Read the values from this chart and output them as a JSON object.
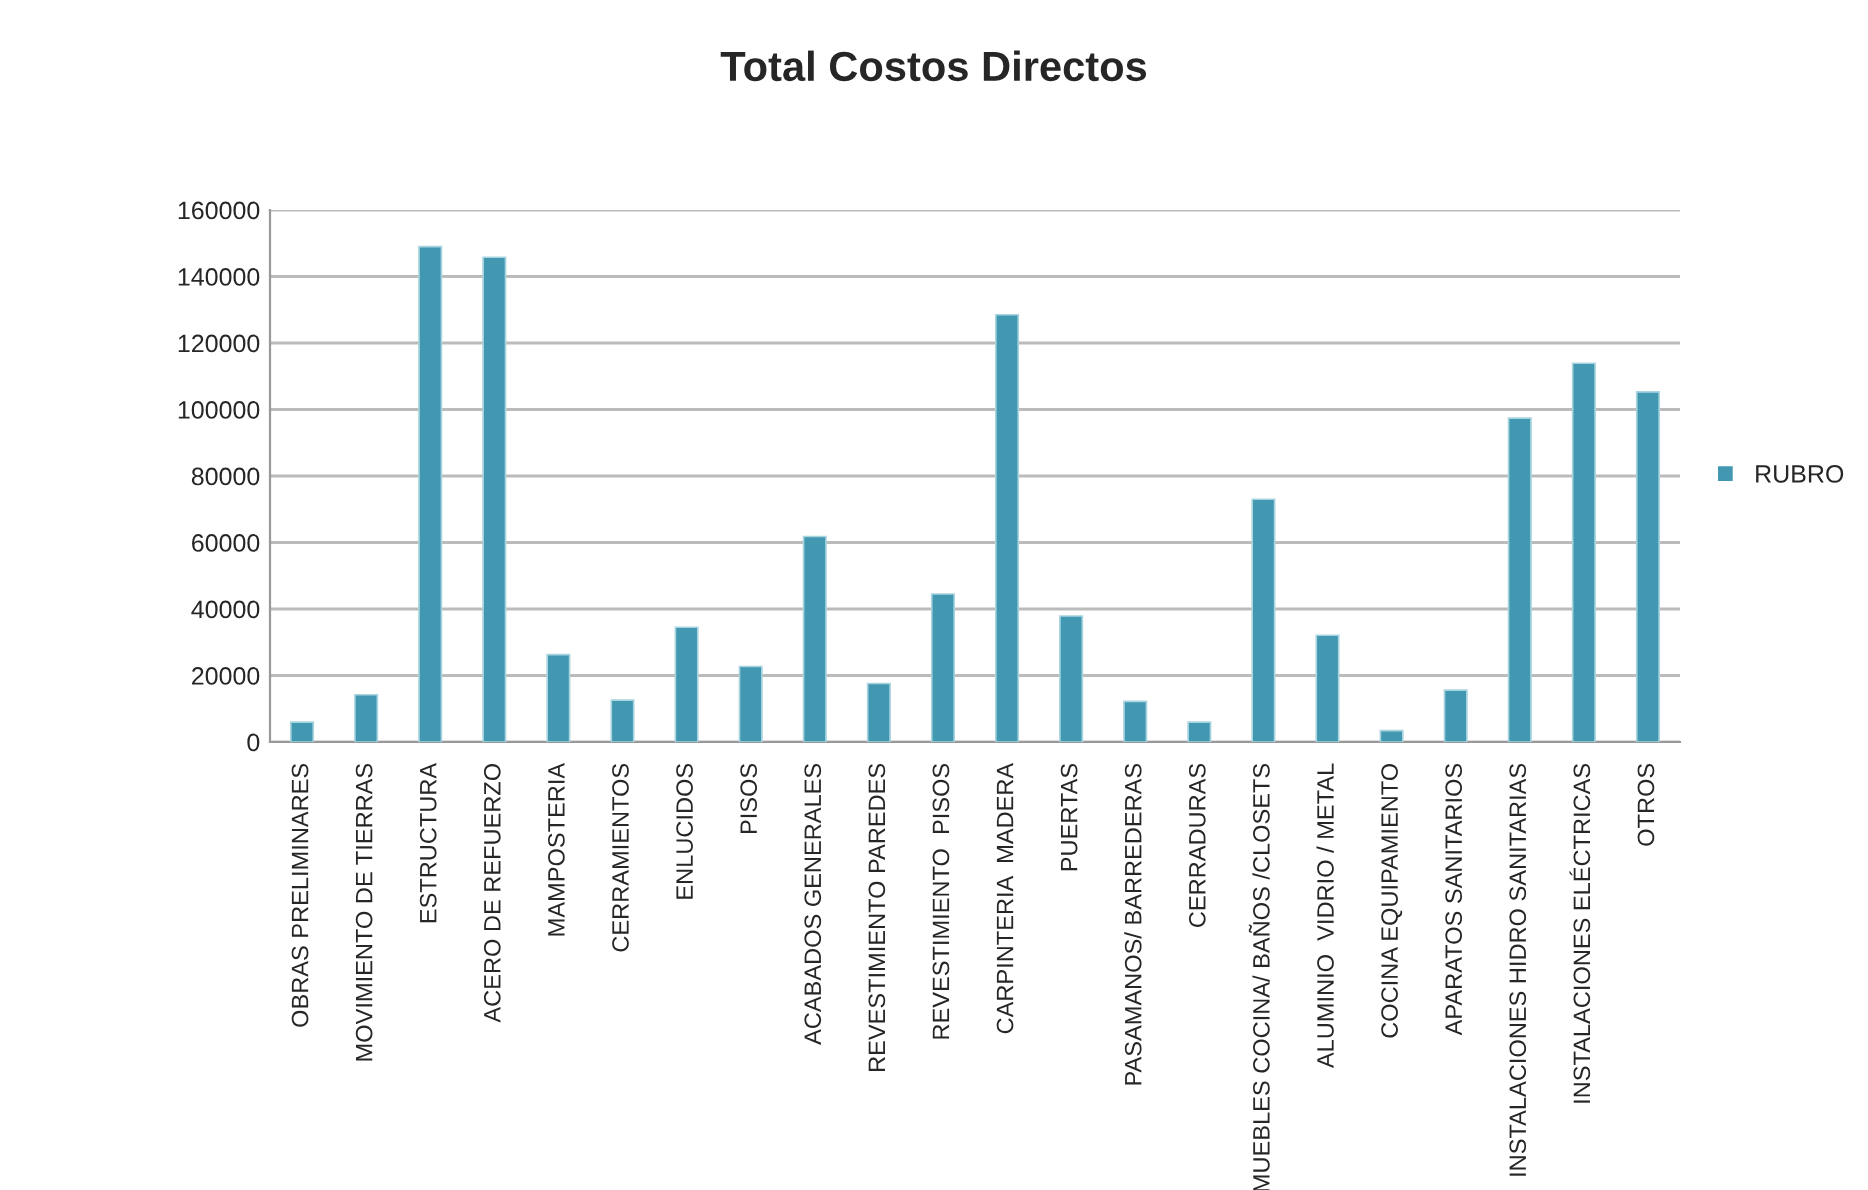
{
  "chart_data": {
    "type": "bar",
    "title": "Total Costos Directos",
    "categories": [
      "OBRAS PRELIMINARES",
      "MOVIMIENTO DE TIERRAS",
      "ESTRUCTURA",
      "ACERO DE REFUERZO",
      "MAMPOSTERIA",
      "CERRAMIENTOS",
      "ENLUCIDOS",
      "PISOS",
      "ACABADOS GENERALES",
      "REVESTIMIENTO PAREDES",
      "REVESTIMIENTO  PISOS",
      "CARPINTERIA  MADERA",
      "PUERTAS",
      "PASAMANOS/ BARREDERAS",
      "CERRADURAS",
      "MUEBLES COCINA/ BAÑOS /CLOSETS",
      "ALUMINIO  VIDRIO / METAL",
      "COCINA EQUIPAMIENTO",
      "APARATOS SANITARIOS",
      "INSTALACIONES HIDRO SANITARIAS",
      "INSTALACIONES ELÉCTRICAS",
      "OTROS"
    ],
    "series": [
      {
        "name": "RUBRO",
        "color": "#4298b0",
        "values": [
          6000,
          14200,
          149000,
          145800,
          26300,
          12600,
          34500,
          22700,
          61800,
          17600,
          44500,
          128500,
          37900,
          12200,
          6000,
          73000,
          32100,
          3400,
          15600,
          97400,
          113900,
          105300
        ]
      }
    ],
    "ylim": [
      0,
      160000
    ],
    "yticks": [
      0,
      20000,
      40000,
      60000,
      80000,
      100000,
      120000,
      140000,
      160000
    ],
    "grid": "y",
    "legend": "right"
  }
}
